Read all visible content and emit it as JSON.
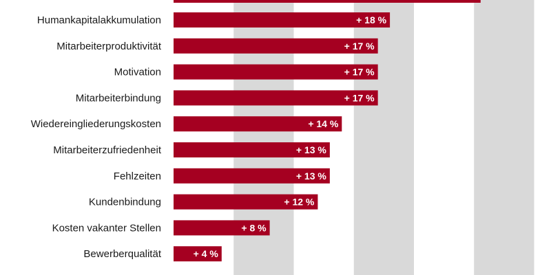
{
  "chart_data": {
    "type": "bar",
    "orientation": "horizontal",
    "title": "",
    "xlabel": "",
    "ylabel": "",
    "categories": [
      "Humankapitalakkumulation",
      "Mitarbeiterproduktivität",
      "Motivation",
      "Mitarbeiterbindung",
      "Wiedereingliederungskosten",
      "Mitarbeiterzufriedenheit",
      "Fehlzeiten",
      "Kundenbindung",
      "Kosten vakanter Stellen",
      "Bewerberqualität"
    ],
    "values": [
      18,
      17,
      17,
      17,
      14,
      13,
      13,
      12,
      8,
      4
    ],
    "value_labels": [
      "+ 18 %",
      "+ 17 %",
      "+ 17 %",
      "+ 17 %",
      "+ 14 %",
      "+ 13 %",
      "+ 13 %",
      "+ 12 %",
      "+ 8 %",
      "+ 4 %"
    ],
    "partial_top_bar_value": 24,
    "xlim": [
      0,
      30
    ],
    "grid_bands": [
      [
        5,
        10
      ],
      [
        15,
        20
      ],
      [
        25,
        30
      ]
    ],
    "colors": {
      "bar": "#a50021",
      "band": "#d9d9d9",
      "background": "#ffffff",
      "label_text": "#ffffff",
      "category_text": "#1a1a1a"
    }
  }
}
